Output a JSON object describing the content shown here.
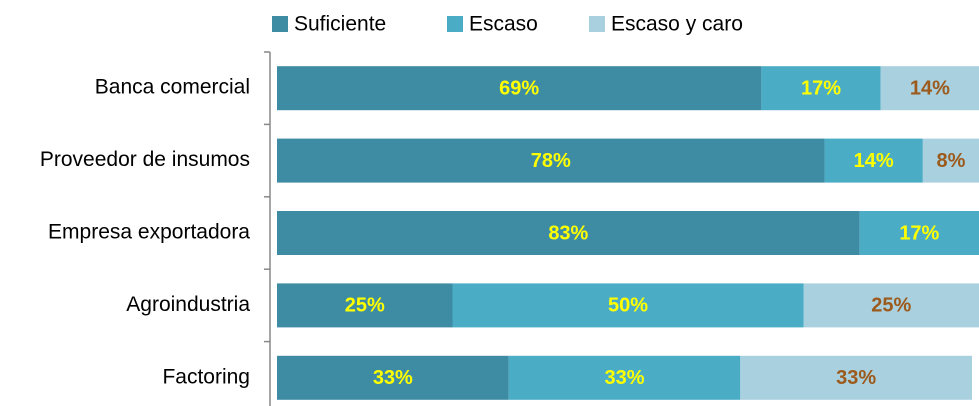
{
  "chart_data": {
    "type": "stacked-bar-horizontal",
    "categories": [
      "Banca comercial",
      "Proveedor de insumos",
      "Empresa exportadora",
      "Agroindustria",
      "Factoring"
    ],
    "series": [
      {
        "name": "Suficiente",
        "color": "#3d8ca3",
        "label_color": "#ffff00",
        "values": [
          69,
          78,
          83,
          25,
          33
        ],
        "value_labels": [
          "69%",
          "78%",
          "83%",
          "25%",
          "33%"
        ]
      },
      {
        "name": "Escaso",
        "color": "#4bacc6",
        "label_color": "#ffff00",
        "values": [
          17,
          14,
          17,
          50,
          33
        ],
        "value_labels": [
          "17%",
          "14%",
          "17%",
          "50%",
          "33%"
        ]
      },
      {
        "name": "Escaso y caro",
        "color": "#a9d0de",
        "label_color": "#9c5a1c",
        "values": [
          14,
          8,
          null,
          25,
          33
        ],
        "value_labels": [
          "14%",
          "8%",
          null,
          "25%",
          "33%"
        ]
      }
    ],
    "xlim": [
      0,
      100
    ]
  }
}
